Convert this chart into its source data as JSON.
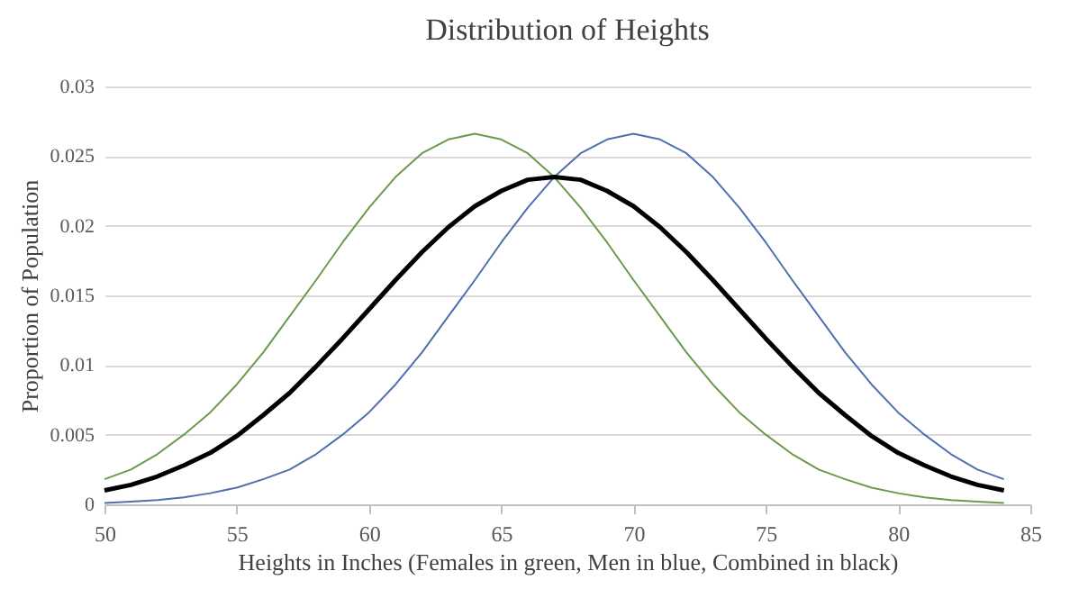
{
  "chart_data": {
    "type": "line",
    "title": "Distribution  of Heights",
    "xlabel": "Heights in Inches (Females in green, Men in blue, Combined in black)",
    "ylabel": "Proportion of Population",
    "x": [
      50,
      51,
      52,
      53,
      54,
      55,
      56,
      57,
      58,
      59,
      60,
      61,
      62,
      63,
      64,
      65,
      66,
      67,
      68,
      69,
      70,
      71,
      72,
      73,
      74,
      75,
      76,
      77,
      78,
      79,
      80,
      81,
      82,
      83,
      84
    ],
    "series": [
      {
        "color": "#6b9a4b",
        "values": [
          0.0018,
          0.0025,
          0.0036,
          0.005,
          0.0066,
          0.0086,
          0.0109,
          0.0135,
          0.0161,
          0.0188,
          0.0213,
          0.0235,
          0.0252,
          0.0262,
          0.0266,
          0.0262,
          0.0252,
          0.0235,
          0.0213,
          0.0188,
          0.0161,
          0.0135,
          0.0109,
          0.0086,
          0.0066,
          0.005,
          0.0036,
          0.0025,
          0.0018,
          0.0012,
          0.0008,
          0.0005,
          0.0003,
          0.0002,
          0.0001
        ]
      },
      {
        "color": "#4f6fae",
        "values": [
          0.0001,
          0.0002,
          0.0003,
          0.0005,
          0.0008,
          0.0012,
          0.0018,
          0.0025,
          0.0036,
          0.005,
          0.0066,
          0.0086,
          0.0109,
          0.0135,
          0.0161,
          0.0188,
          0.0213,
          0.0235,
          0.0252,
          0.0262,
          0.0266,
          0.0262,
          0.0252,
          0.0235,
          0.0213,
          0.0188,
          0.0161,
          0.0135,
          0.0109,
          0.0086,
          0.0066,
          0.005,
          0.0036,
          0.0025,
          0.0018
        ]
      },
      {
        "color": "#000000",
        "values": [
          0.001,
          0.0014,
          0.002,
          0.0028,
          0.0037,
          0.0049,
          0.0064,
          0.008,
          0.0099,
          0.0119,
          0.014,
          0.0161,
          0.0181,
          0.0199,
          0.0214,
          0.0225,
          0.0233,
          0.0235,
          0.0233,
          0.0225,
          0.0214,
          0.0199,
          0.0181,
          0.0161,
          0.014,
          0.0119,
          0.0099,
          0.008,
          0.0064,
          0.0049,
          0.0037,
          0.0028,
          0.002,
          0.0014,
          0.001
        ]
      }
    ],
    "xlim": [
      50,
      85
    ],
    "xticks": [
      50,
      55,
      60,
      65,
      70,
      75,
      80,
      85
    ],
    "ylim": [
      0,
      0.03
    ],
    "yticks": [
      0,
      0.005,
      0.01,
      0.015,
      0.02,
      0.025,
      0.03
    ],
    "grid": "y",
    "marker": "none",
    "line_style": "solid"
  }
}
